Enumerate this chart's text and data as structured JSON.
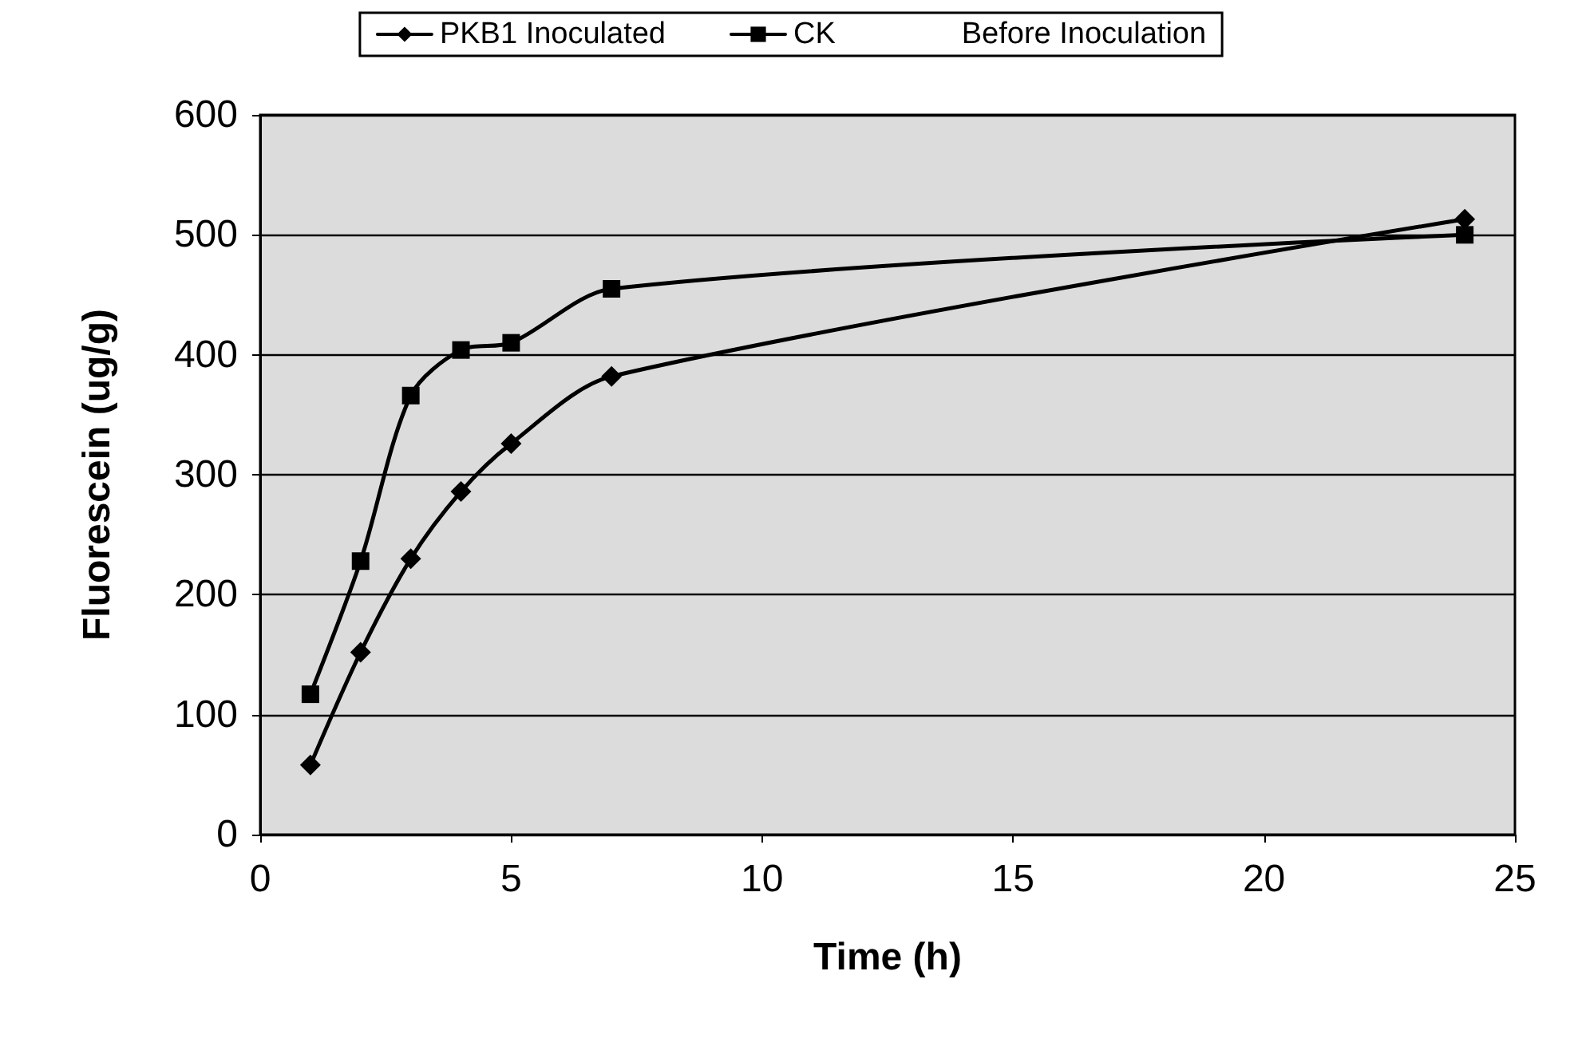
{
  "chart_data": {
    "type": "line",
    "xlabel": "Time (h)",
    "ylabel": "Fluorescein (ug/g)",
    "xlim": [
      0,
      25
    ],
    "xticks": [
      0,
      5,
      10,
      15,
      20,
      25
    ],
    "ylim": [
      0,
      600
    ],
    "yticks": [
      0,
      100,
      200,
      300,
      400,
      500,
      600
    ],
    "grid": "y",
    "legend": "top",
    "line_style": "solid",
    "series": [
      {
        "name": "PKB1 Inoculated",
        "color": "#000000",
        "marker": "diamond",
        "x": [
          1,
          2,
          3,
          4,
          5,
          7,
          24
        ],
        "values": [
          58,
          152,
          230,
          286,
          326,
          382,
          513
        ]
      },
      {
        "name": "CK",
        "color": "#000000",
        "marker": "square",
        "x": [
          1,
          2,
          3,
          4,
          5,
          7,
          24
        ],
        "values": [
          117,
          228,
          366,
          404,
          410,
          455,
          500
        ]
      },
      {
        "name": "Before Inoculation",
        "marker": "none"
      }
    ]
  }
}
